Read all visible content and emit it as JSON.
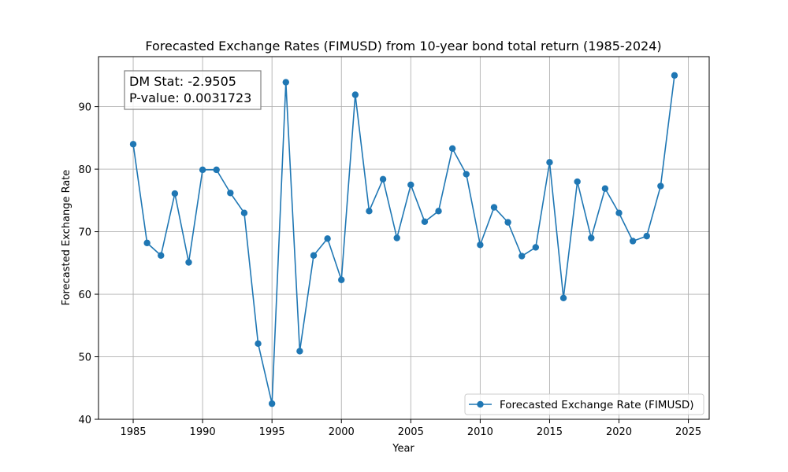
{
  "chart_data": {
    "type": "line",
    "title": "Forecasted Exchange Rates (FIMUSD) from 10-year bond total return (1985-2024)",
    "xlabel": "Year",
    "ylabel": "Forecasted Exchange Rate",
    "xlim": [
      1982.5,
      2026.5
    ],
    "ylim": [
      40,
      98
    ],
    "xticks": [
      1985,
      1990,
      1995,
      2000,
      2005,
      2010,
      2015,
      2020,
      2025
    ],
    "yticks": [
      40,
      50,
      60,
      70,
      80,
      90
    ],
    "grid": true,
    "legend_position": "lower-right",
    "annotation": {
      "lines": [
        "DM Stat: -2.9505",
        "P-value: 0.0031723"
      ]
    },
    "series": [
      {
        "name": "Forecasted Exchange Rate (FIMUSD)",
        "color": "#1f77b4",
        "x": [
          1985,
          1986,
          1987,
          1988,
          1989,
          1990,
          1991,
          1992,
          1993,
          1994,
          1995,
          1996,
          1997,
          1998,
          1999,
          2000,
          2001,
          2002,
          2003,
          2004,
          2005,
          2006,
          2007,
          2008,
          2009,
          2010,
          2011,
          2012,
          2013,
          2014,
          2015,
          2016,
          2017,
          2018,
          2019,
          2020,
          2021,
          2022,
          2023,
          2024
        ],
        "values": [
          84.0,
          68.2,
          66.2,
          76.1,
          65.1,
          79.9,
          79.9,
          76.2,
          73.0,
          52.1,
          42.5,
          93.9,
          50.9,
          66.2,
          68.9,
          62.3,
          91.9,
          73.3,
          78.4,
          69.0,
          77.5,
          71.6,
          73.3,
          83.3,
          79.2,
          67.9,
          73.9,
          71.5,
          66.1,
          67.5,
          81.1,
          59.4,
          78.0,
          69.0,
          76.9,
          73.0,
          68.5,
          69.3,
          77.3,
          95.0
        ]
      }
    ]
  }
}
